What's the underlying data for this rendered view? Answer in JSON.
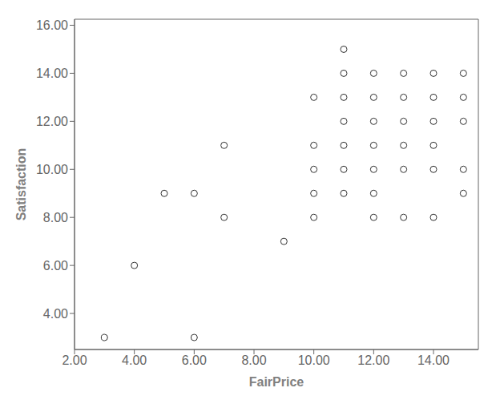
{
  "chart_data": {
    "type": "scatter",
    "x": [
      3,
      4,
      5,
      6,
      6,
      7,
      7,
      9,
      10,
      10,
      10,
      10,
      10,
      11,
      11,
      11,
      11,
      11,
      11,
      11,
      12,
      12,
      12,
      12,
      12,
      12,
      12,
      13,
      13,
      13,
      13,
      13,
      13,
      14,
      14,
      14,
      14,
      14,
      14,
      15,
      15,
      15,
      15,
      15
    ],
    "values": [
      3,
      6,
      9,
      9,
      3,
      11,
      8,
      7,
      13,
      11,
      10,
      9,
      8,
      15,
      14,
      13,
      12,
      11,
      10,
      9,
      14,
      13,
      12,
      11,
      10,
      9,
      8,
      14,
      13,
      12,
      11,
      10,
      8,
      14,
      13,
      12,
      11,
      10,
      8,
      14,
      13,
      12,
      10,
      9
    ],
    "xlabel": "FairPrice",
    "ylabel": "Satisfaction",
    "xlim": [
      2.0,
      15.5
    ],
    "ylim": [
      2.5,
      16.25
    ],
    "xticks": [
      {
        "value": 2.0,
        "label": "2.00"
      },
      {
        "value": 4.0,
        "label": "4.00"
      },
      {
        "value": 6.0,
        "label": "6.00"
      },
      {
        "value": 8.0,
        "label": "8.00"
      },
      {
        "value": 10.0,
        "label": "10.00"
      },
      {
        "value": 12.0,
        "label": "12.00"
      },
      {
        "value": 14.0,
        "label": "14.00"
      }
    ],
    "yticks": [
      {
        "value": 4.0,
        "label": "4.00"
      },
      {
        "value": 6.0,
        "label": "6.00"
      },
      {
        "value": 8.0,
        "label": "8.00"
      },
      {
        "value": 10.0,
        "label": "10.00"
      },
      {
        "value": 12.0,
        "label": "12.00"
      },
      {
        "value": 14.0,
        "label": "14.00"
      },
      {
        "value": 16.0,
        "label": "16.00"
      }
    ],
    "color": "#333333",
    "marker": "circle",
    "grid": false
  }
}
